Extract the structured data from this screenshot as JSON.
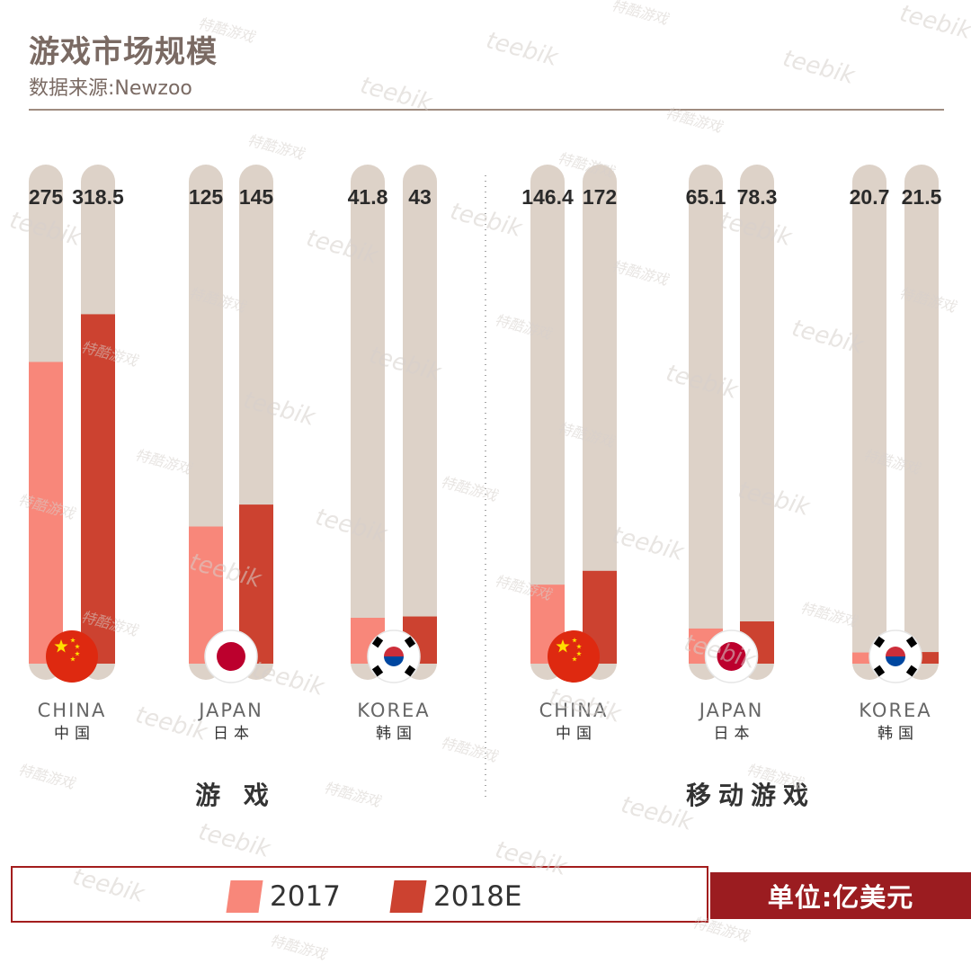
{
  "title": "游戏市场规模",
  "subtitle": "数据来源:Newzoo",
  "unit": "单位:亿美元",
  "colors": {
    "y2017": "#f8877a",
    "y2018": "#cc4230",
    "track": "#ddd2c8",
    "accent": "#9b1c20",
    "china_flag": "#de2910",
    "japan_dot": "#bc002d"
  },
  "legend": [
    {
      "label": "2017",
      "color": "#f8877a"
    },
    {
      "label": "2018E",
      "color": "#cc4230"
    }
  ],
  "watermark_en": "teebik",
  "watermark_cn": "特酷游戏",
  "chart_data": {
    "type": "bar",
    "title": "游戏市场规模",
    "ylabel": "亿美元",
    "series_names": [
      "2017",
      "2018E"
    ],
    "groups": [
      {
        "name": "游 戏",
        "countries": [
          {
            "en": "CHINA",
            "cn": "中国",
            "flag": "china-flag-icon",
            "values": [
              275,
              318.5
            ],
            "labels": [
              "275",
              "318.5"
            ]
          },
          {
            "en": "JAPAN",
            "cn": "日本",
            "flag": "japan-flag-icon",
            "values": [
              125,
              145
            ],
            "labels": [
              "125",
              "145"
            ]
          },
          {
            "en": "KOREA",
            "cn": "韩国",
            "flag": "korea-flag-icon",
            "values": [
              41.8,
              43
            ],
            "labels": [
              "41.8",
              "43"
            ]
          }
        ]
      },
      {
        "name": "移动游戏",
        "countries": [
          {
            "en": "CHINA",
            "cn": "中国",
            "flag": "china-flag-icon",
            "values": [
              146.4,
              172
            ],
            "labels": [
              "146.4",
              "172"
            ]
          },
          {
            "en": "JAPAN",
            "cn": "日本",
            "flag": "japan-flag-icon",
            "values": [
              65.1,
              78.3
            ],
            "labels": [
              "65.1",
              "78.3"
            ]
          },
          {
            "en": "KOREA",
            "cn": "韩国",
            "flag": "korea-flag-icon",
            "values": [
              20.7,
              21.5
            ],
            "labels": [
              "20.7",
              "21.5"
            ]
          }
        ]
      }
    ]
  }
}
